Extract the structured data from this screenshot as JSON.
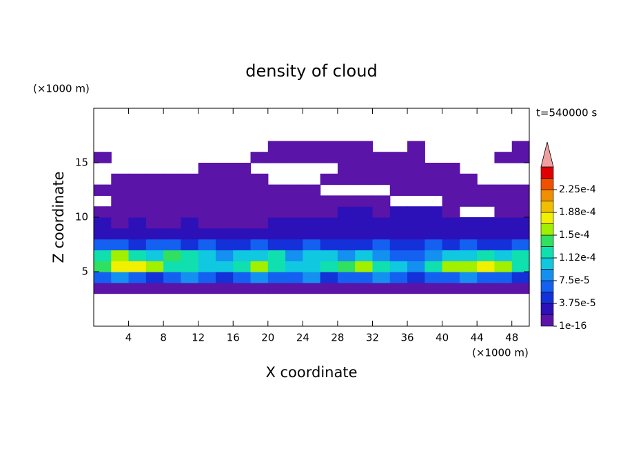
{
  "chart_data": {
    "type": "contour",
    "title": "density of cloud",
    "x_label": "X coordinate",
    "y_label": "Z coordinate",
    "x_unit": "(×1000 m)",
    "y_unit": "(×1000 m)",
    "annotation": "t=540000 s",
    "xlim": [
      0,
      50
    ],
    "ylim": [
      0,
      20
    ],
    "xticks": [
      4,
      8,
      12,
      16,
      20,
      24,
      28,
      32,
      36,
      40,
      44,
      48
    ],
    "yticks": [
      5,
      10,
      15
    ],
    "x": [
      1,
      3,
      5,
      7,
      9,
      11,
      13,
      15,
      17,
      19,
      21,
      23,
      25,
      27,
      29,
      31,
      33,
      35,
      37,
      39,
      41,
      43,
      45,
      47,
      49
    ],
    "z": [
      3.5,
      4.5,
      5.5,
      6.5,
      7.5,
      8.5,
      9.5,
      10.5,
      11.5,
      12.5,
      13.5,
      14.5,
      15.5,
      16.5
    ],
    "values": [
      [
        1e-05,
        1e-05,
        1e-05,
        1e-05,
        1e-05,
        1e-05,
        1e-05,
        1e-05,
        1e-05,
        1e-05,
        1e-05,
        1e-05,
        1e-05,
        1e-05,
        1e-05,
        1e-05,
        1e-05,
        1e-05,
        1e-05,
        1e-05,
        1e-05,
        1e-05,
        1e-05,
        1e-05,
        1e-05
      ],
      [
        6e-05,
        8e-05,
        7e-05,
        5e-05,
        6e-05,
        9e-05,
        7e-05,
        5e-05,
        6e-05,
        8e-05,
        7e-05,
        6e-05,
        8e-05,
        5e-05,
        6e-05,
        7e-05,
        8e-05,
        6e-05,
        5e-05,
        7e-05,
        6e-05,
        8e-05,
        7e-05,
        6e-05,
        5e-05
      ],
      [
        0.00014,
        0.00017,
        0.00018,
        0.00015,
        0.00013,
        0.00012,
        0.00011,
        0.0001,
        0.00012,
        0.00016,
        0.00013,
        0.00011,
        0.0001,
        0.00012,
        0.00014,
        0.00016,
        0.00012,
        0.00011,
        9e-05,
        0.00012,
        0.00015,
        0.00016,
        0.00017,
        0.00015,
        0.00013
      ],
      [
        0.00013,
        0.00015,
        0.00012,
        0.00011,
        0.00014,
        0.00012,
        0.0001,
        9e-05,
        0.00011,
        0.0001,
        0.00012,
        9e-05,
        0.0001,
        0.00011,
        9e-05,
        0.0001,
        8e-05,
        7e-05,
        6e-05,
        9e-05,
        0.00011,
        0.0001,
        0.00012,
        0.00011,
        0.00013
      ],
      [
        6e-05,
        7e-05,
        5e-05,
        6e-05,
        7e-05,
        5e-05,
        6e-05,
        4e-05,
        5e-05,
        6e-05,
        5e-05,
        4e-05,
        6e-05,
        5e-05,
        4e-05,
        5e-05,
        6e-05,
        4e-05,
        5e-05,
        6e-05,
        5e-05,
        6e-05,
        5e-05,
        4e-05,
        6e-05
      ],
      [
        3e-05,
        3.5e-05,
        3e-05,
        2.5e-05,
        3e-05,
        3e-05,
        2.5e-05,
        3e-05,
        3.5e-05,
        3e-05,
        2.5e-05,
        3e-05,
        3.5e-05,
        3e-05,
        3e-05,
        2.5e-05,
        3e-05,
        3.5e-05,
        3e-05,
        3e-05,
        2.5e-05,
        3e-05,
        3.5e-05,
        3e-05,
        3e-05
      ],
      [
        2e-05,
        1.5e-05,
        2e-05,
        1e-05,
        1.5e-05,
        2e-05,
        1e-05,
        1.5e-05,
        1e-05,
        1.5e-05,
        2e-05,
        2.5e-05,
        2.5e-05,
        2e-05,
        2.5e-05,
        2e-05,
        2.5e-05,
        2e-05,
        2.5e-05,
        2e-05,
        2.5e-05,
        2e-05,
        2e-05,
        2.5e-05,
        2e-05
      ],
      [
        1e-05,
        1e-05,
        1e-05,
        1e-05,
        1e-05,
        1e-05,
        1e-05,
        1e-05,
        1e-05,
        1e-05,
        1e-05,
        1e-05,
        1.5e-05,
        1e-05,
        2e-05,
        2e-05,
        1.5e-05,
        2e-05,
        2e-05,
        2e-05,
        1.5e-05,
        null,
        null,
        1e-05,
        1e-05
      ],
      [
        null,
        1e-05,
        1e-05,
        1e-05,
        1e-05,
        1e-05,
        1e-05,
        1e-05,
        1e-05,
        1e-05,
        1e-05,
        1e-05,
        1e-05,
        1e-05,
        1e-05,
        1e-05,
        1e-05,
        null,
        null,
        null,
        1e-05,
        1e-05,
        1e-05,
        1e-05,
        1e-05
      ],
      [
        1e-05,
        1e-05,
        1e-05,
        1e-05,
        1e-05,
        1e-05,
        1e-05,
        1e-05,
        1e-05,
        1e-05,
        1e-05,
        1e-05,
        1e-05,
        null,
        null,
        null,
        null,
        1e-05,
        1e-05,
        1e-05,
        1e-05,
        1e-05,
        1e-05,
        1e-05,
        1e-05
      ],
      [
        null,
        1e-05,
        1e-05,
        1e-05,
        1e-05,
        1e-05,
        1e-05,
        1e-05,
        1e-05,
        1e-05,
        null,
        null,
        null,
        1e-05,
        1e-05,
        1e-05,
        1e-05,
        1e-05,
        1e-05,
        1e-05,
        1e-05,
        1e-05,
        null,
        null,
        null
      ],
      [
        null,
        null,
        null,
        null,
        null,
        null,
        1e-05,
        1e-05,
        1e-05,
        null,
        null,
        null,
        null,
        null,
        1e-05,
        1e-05,
        1e-05,
        1e-05,
        1e-05,
        1e-05,
        1e-05,
        null,
        null,
        null,
        null
      ],
      [
        1e-05,
        null,
        null,
        null,
        null,
        null,
        null,
        null,
        null,
        1e-05,
        1e-05,
        1e-05,
        1e-05,
        1e-05,
        1e-05,
        1e-05,
        1e-05,
        1e-05,
        1e-05,
        null,
        null,
        null,
        null,
        1e-05,
        1e-05
      ],
      [
        null,
        null,
        null,
        null,
        null,
        null,
        null,
        null,
        null,
        null,
        1e-05,
        1e-05,
        1e-05,
        1e-05,
        1e-05,
        1e-05,
        null,
        null,
        1e-05,
        null,
        null,
        null,
        null,
        null,
        1e-05
      ]
    ],
    "levels": [
      1e-16,
      1.875e-05,
      3.75e-05,
      5.625e-05,
      7.5e-05,
      9.375e-05,
      0.0001125,
      0.00013125,
      0.00015,
      0.00016875,
      0.0001875,
      0.00020625,
      0.000225,
      0.00024375,
      0.0002625
    ],
    "colors": [
      "#5a14a8",
      "#2c10b8",
      "#1430d8",
      "#1460f0",
      "#1490f0",
      "#10c8e0",
      "#10e0b0",
      "#30e060",
      "#a0f000",
      "#f0f000",
      "#f0c000",
      "#f09000",
      "#f05000",
      "#e00000"
    ],
    "extend_color": "#f0a0a0",
    "colorbar_ticks": [
      1e-16,
      {
        "value": 3.75e-05,
        "label": "3.75e-5"
      },
      {
        "value": 7.5e-05,
        "label": "7.5e-5"
      },
      {
        "value": 0.0001125,
        "label": "1.12e-4"
      },
      {
        "value": 0.00015,
        "label": "1.5e-4"
      },
      {
        "value": 0.0001875,
        "label": "1.88e-4"
      },
      {
        "value": 0.000225,
        "label": "2.25e-4"
      }
    ]
  }
}
